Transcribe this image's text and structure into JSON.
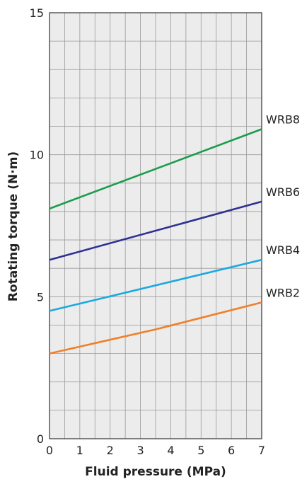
{
  "chart_data": {
    "type": "line",
    "xlabel": "Fluid pressure (MPa)",
    "ylabel": "Rotating torque (N·m)",
    "xlim": [
      0,
      7
    ],
    "ylim": [
      0,
      15
    ],
    "x_ticks": [
      "0",
      "1",
      "2",
      "3",
      "4",
      "5",
      "6",
      "7"
    ],
    "y_ticks": [
      "0",
      "5",
      "10",
      "15"
    ],
    "grid": true,
    "series": [
      {
        "name": "WRB8",
        "color": "#1a9e4b",
        "x": [
          0,
          7
        ],
        "y": [
          8.1,
          10.9
        ]
      },
      {
        "name": "WRB6",
        "color": "#2e3192",
        "x": [
          0,
          7
        ],
        "y": [
          6.3,
          8.35
        ]
      },
      {
        "name": "WRB4",
        "color": "#1ba9e1",
        "x": [
          0,
          7
        ],
        "y": [
          4.5,
          6.3
        ]
      },
      {
        "name": "WRB2",
        "color": "#f07f2a",
        "x": [
          0,
          3.5,
          7
        ],
        "y": [
          3.0,
          3.85,
          4.8
        ]
      }
    ]
  }
}
